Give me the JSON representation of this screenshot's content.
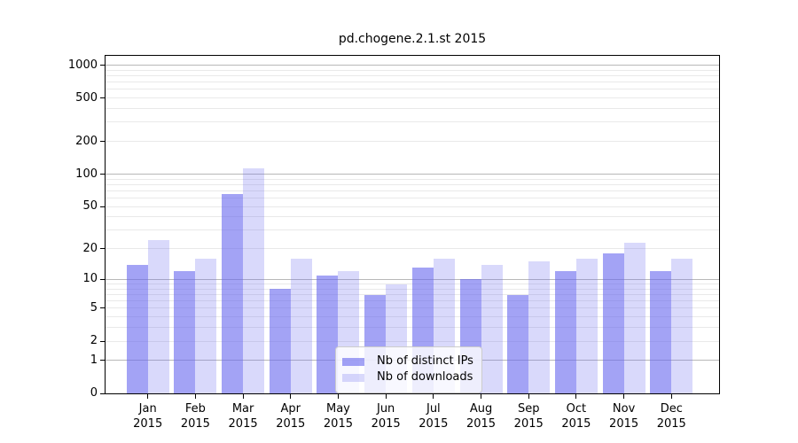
{
  "figure": {
    "background": "#ffffff"
  },
  "chart_data": {
    "type": "bar",
    "title": "pd.chogene.2.1.st 2015",
    "xlabel": "",
    "ylabel": "",
    "year_label": "2015",
    "categories": [
      "Jan",
      "Feb",
      "Mar",
      "Apr",
      "May",
      "Jun",
      "Jul",
      "Aug",
      "Sep",
      "Oct",
      "Nov",
      "Dec"
    ],
    "series": [
      {
        "name": "Nb of distinct IPs",
        "key": "distinct-ips",
        "color": "rgba(102,102,238,0.60)",
        "values": [
          14,
          12,
          66,
          8,
          11,
          7,
          13,
          10,
          7,
          12,
          18,
          12
        ]
      },
      {
        "name": "Nb of downloads",
        "key": "downloads",
        "color": "rgba(102,102,238,0.25)",
        "values": [
          24,
          16,
          113,
          16,
          12,
          9,
          16,
          14,
          15,
          16,
          23,
          16
        ]
      }
    ],
    "y_scale": "log10(value+1)",
    "y_ticks": [
      0,
      1,
      2,
      5,
      10,
      20,
      50,
      100,
      200,
      500,
      1000
    ],
    "ylim": [
      0,
      1240
    ],
    "gridlines": {
      "major": [
        1,
        10,
        100,
        1000
      ],
      "minor": [
        2,
        3,
        4,
        5,
        6,
        7,
        8,
        9,
        20,
        30,
        40,
        50,
        60,
        70,
        80,
        90,
        200,
        300,
        400,
        500,
        600,
        700,
        800,
        900
      ]
    },
    "legend": {
      "position": "bottom-center"
    },
    "colors": {
      "axis": "#000000",
      "grid_major": "#b8b8b8",
      "grid_minor": "#e9e9e9",
      "legend_border": "#cccccc"
    }
  }
}
